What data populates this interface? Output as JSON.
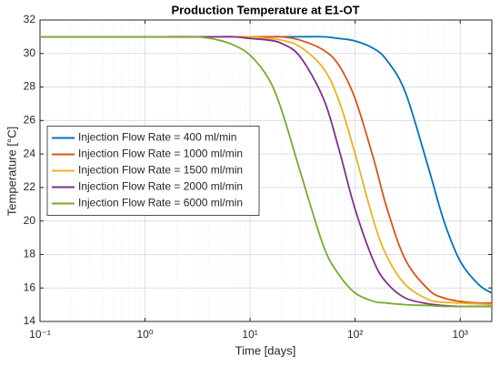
{
  "chart_data": {
    "type": "line",
    "title": "Production Temperature at E1-OT",
    "xlabel": "Time [days]",
    "ylabel": "Temperature [°C]",
    "xscale": "log",
    "xlim": [
      0.1,
      2000
    ],
    "xticks": [
      {
        "value": 0.1,
        "label": "10⁻¹"
      },
      {
        "value": 1,
        "label": "10⁰"
      },
      {
        "value": 10,
        "label": "10¹"
      },
      {
        "value": 100,
        "label": "10²"
      },
      {
        "value": 1000,
        "label": "10³"
      }
    ],
    "ylim": [
      14,
      32
    ],
    "yticks": [
      14,
      16,
      18,
      20,
      22,
      24,
      26,
      28,
      30,
      32
    ],
    "grid": true,
    "minor_grid": true,
    "legend": "west",
    "x": [
      0.1,
      1,
      3,
      5,
      7,
      10,
      15,
      20,
      30,
      50,
      70,
      100,
      150,
      200,
      300,
      500,
      700,
      1000,
      1500,
      2000
    ],
    "series": [
      {
        "name": "Injection Flow Rate = 400 ml/min",
        "color": "#0072BD",
        "values": [
          31,
          31,
          31,
          31,
          31,
          31,
          31,
          31,
          31,
          31,
          30.9,
          30.75,
          30.3,
          29.6,
          27.7,
          23.15,
          20.0,
          17.6,
          16.2,
          15.7
        ]
      },
      {
        "name": "Injection Flow Rate = 1000 ml/min",
        "color": "#D95319",
        "values": [
          31,
          31,
          31,
          31,
          31,
          31,
          31,
          31,
          30.8,
          30.2,
          29.3,
          27.3,
          23.7,
          20.8,
          17.7,
          15.9,
          15.4,
          15.2,
          15.1,
          15.1
        ]
      },
      {
        "name": "Injection Flow Rate = 1500 ml/min",
        "color": "#EDB120",
        "values": [
          31,
          31,
          31,
          31,
          31,
          31,
          30.9,
          30.8,
          30.4,
          29.1,
          27.2,
          24.0,
          20.0,
          17.9,
          16.2,
          15.3,
          15.15,
          15.1,
          15.05,
          15.0
        ]
      },
      {
        "name": "Injection Flow Rate = 2000 ml/min",
        "color": "#7E2F8E",
        "values": [
          31,
          31,
          31,
          31,
          31,
          30.9,
          30.8,
          30.6,
          29.8,
          27.3,
          24.3,
          20.7,
          17.6,
          16.3,
          15.4,
          15.05,
          14.95,
          14.9,
          14.9,
          14.9
        ]
      },
      {
        "name": "Injection Flow Rate = 6000 ml/min",
        "color": "#77AC30",
        "values": [
          31,
          31,
          31,
          30.8,
          30.5,
          29.9,
          28.5,
          26.6,
          22.95,
          18.5,
          16.8,
          15.7,
          15.2,
          15.1,
          15.0,
          14.95,
          14.9,
          14.9,
          14.9,
          14.9
        ]
      }
    ]
  }
}
